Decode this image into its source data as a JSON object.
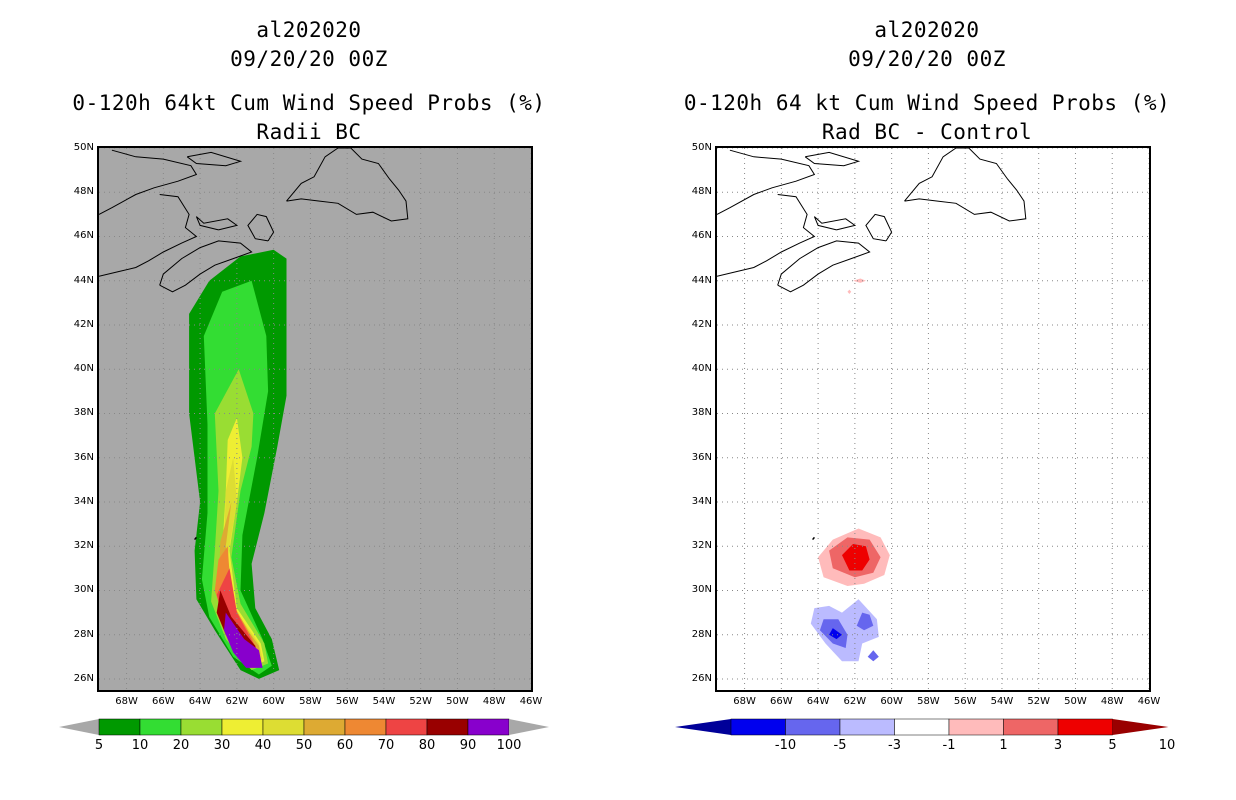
{
  "chart_data": [
    {
      "type": "heatmap",
      "storm_id": "al202020",
      "datetime": "09/20/20 00Z",
      "title": "0-120h 64kt Cum Wind Speed Probs (%)",
      "subtitle": "Radii BC",
      "x_ticks": [
        "68W",
        "66W",
        "64W",
        "62W",
        "60W",
        "58W",
        "56W",
        "54W",
        "52W",
        "50W",
        "48W",
        "46W"
      ],
      "y_ticks": [
        "26N",
        "28N",
        "30N",
        "32N",
        "34N",
        "36N",
        "38N",
        "40N",
        "42N",
        "44N",
        "46N",
        "48N",
        "50N"
      ],
      "xlim": [
        -69.5,
        -46
      ],
      "ylim": [
        25.5,
        50
      ],
      "colorbar": {
        "labels": [
          "5",
          "10",
          "20",
          "30",
          "40",
          "50",
          "60",
          "70",
          "80",
          "90",
          "100"
        ],
        "colors": [
          "#009900",
          "#33dd33",
          "#99dd33",
          "#eeee33",
          "#dddd33",
          "#ddaa33",
          "#ee8833",
          "#ee4444",
          "#990000",
          "#8800cc"
        ]
      },
      "contours": [
        {
          "level": 5,
          "polygon": [
            [
              -60,
              45.4
            ],
            [
              -59.3,
              45.0
            ],
            [
              -59.3,
              41
            ],
            [
              -59.3,
              38.8
            ],
            [
              -59.8,
              36.5
            ],
            [
              -60.5,
              33.5
            ],
            [
              -61.2,
              31.2
            ],
            [
              -61.0,
              29.2
            ],
            [
              -60.1,
              27.8
            ],
            [
              -59.7,
              26.4
            ],
            [
              -60.8,
              26.0
            ],
            [
              -61.8,
              26.4
            ],
            [
              -63.2,
              28.2
            ],
            [
              -64.2,
              29.6
            ],
            [
              -64.3,
              31.8
            ],
            [
              -64.0,
              34.0
            ],
            [
              -64.6,
              38.0
            ],
            [
              -64.6,
              42.5
            ],
            [
              -63.5,
              44.0
            ],
            [
              -61.8,
              45.1
            ]
          ]
        },
        {
          "level": 10,
          "polygon": [
            [
              -61.2,
              44.0
            ],
            [
              -60.4,
              41.5
            ],
            [
              -60.3,
              39.0
            ],
            [
              -60.9,
              36.0
            ],
            [
              -61.7,
              32.5
            ],
            [
              -61.8,
              30.0
            ],
            [
              -60.6,
              27.8
            ],
            [
              -60.1,
              26.6
            ],
            [
              -60.8,
              26.2
            ],
            [
              -62.2,
              27.0
            ],
            [
              -63.5,
              28.8
            ],
            [
              -63.9,
              30.5
            ],
            [
              -63.6,
              33.5
            ],
            [
              -63.6,
              37.5
            ],
            [
              -63.8,
              41.5
            ],
            [
              -62.8,
              43.5
            ]
          ]
        },
        {
          "level": 20,
          "polygon": [
            [
              -61.9,
              40.0
            ],
            [
              -61.1,
              38.0
            ],
            [
              -61.2,
              36.5
            ],
            [
              -61.8,
              34.5
            ],
            [
              -62.3,
              31.5
            ],
            [
              -61.8,
              29.4
            ],
            [
              -60.5,
              27.6
            ],
            [
              -60.3,
              26.7
            ],
            [
              -61.2,
              26.4
            ],
            [
              -62.6,
              27.8
            ],
            [
              -63.4,
              29.5
            ],
            [
              -63.2,
              31.8
            ],
            [
              -63.0,
              34.5
            ],
            [
              -63.2,
              38.0
            ]
          ]
        },
        {
          "level": 30,
          "polygon": [
            [
              -62.0,
              37.8
            ],
            [
              -61.7,
              36.0
            ],
            [
              -62.0,
              34.0
            ],
            [
              -62.4,
              31.8
            ],
            [
              -62.0,
              29.2
            ],
            [
              -60.7,
              27.6
            ],
            [
              -60.5,
              26.8
            ],
            [
              -61.2,
              26.5
            ],
            [
              -62.4,
              28.0
            ],
            [
              -63.0,
              29.6
            ],
            [
              -62.8,
              31.8
            ],
            [
              -62.6,
              34.5
            ],
            [
              -62.5,
              36.8
            ]
          ]
        },
        {
          "level": 40,
          "polygon": [
            [
              -62.2,
              36.0
            ],
            [
              -62.0,
              34.0
            ],
            [
              -62.5,
              31.5
            ],
            [
              -62.0,
              29.0
            ],
            [
              -60.8,
              27.6
            ],
            [
              -60.6,
              26.9
            ],
            [
              -61.3,
              26.6
            ],
            [
              -62.5,
              28.2
            ],
            [
              -62.9,
              29.8
            ],
            [
              -62.7,
              32.0
            ],
            [
              -62.6,
              34.5
            ]
          ]
        },
        {
          "level": 50,
          "polygon": [
            [
              -62.3,
              34.0
            ],
            [
              -62.6,
              32.0
            ],
            [
              -62.1,
              29.0
            ],
            [
              -60.8,
              27.5
            ],
            [
              -60.7,
              26.9
            ],
            [
              -61.4,
              26.7
            ],
            [
              -62.6,
              28.3
            ],
            [
              -63.0,
              29.8
            ],
            [
              -62.9,
              32.2
            ]
          ]
        },
        {
          "level": 60,
          "polygon": [
            [
              -62.5,
              32.0
            ],
            [
              -62.3,
              29.5
            ],
            [
              -61.2,
              27.9
            ],
            [
              -60.8,
              27.0
            ],
            [
              -61.4,
              26.8
            ],
            [
              -62.6,
              28.4
            ],
            [
              -63.2,
              30.0
            ],
            [
              -63.0,
              31.4
            ]
          ]
        },
        {
          "level": 70,
          "polygon": [
            [
              -62.4,
              31.0
            ],
            [
              -62.0,
              29.0
            ],
            [
              -60.9,
              27.3
            ],
            [
              -61.3,
              26.9
            ],
            [
              -62.6,
              28.4
            ],
            [
              -63.1,
              29.8
            ]
          ]
        },
        {
          "level": 80,
          "polygon": [
            [
              -62.9,
              30.0
            ],
            [
              -62.3,
              28.8
            ],
            [
              -61.0,
              27.5
            ],
            [
              -60.9,
              27.0
            ],
            [
              -61.6,
              26.9
            ],
            [
              -62.6,
              28.0
            ],
            [
              -63.1,
              29.0
            ]
          ]
        },
        {
          "level": 90,
          "polygon": [
            [
              -62.6,
              29.0
            ],
            [
              -61.6,
              27.8
            ],
            [
              -60.8,
              27.3
            ],
            [
              -60.6,
              26.5
            ],
            [
              -61.5,
              26.5
            ],
            [
              -62.2,
              27.2
            ],
            [
              -62.7,
              28.2
            ]
          ]
        }
      ]
    },
    {
      "type": "heatmap",
      "storm_id": "al202020",
      "datetime": "09/20/20 00Z",
      "title": "0-120h 64 kt Cum Wind Speed Probs (%)",
      "subtitle": "Rad BC - Control",
      "x_ticks": [
        "68W",
        "66W",
        "64W",
        "62W",
        "60W",
        "58W",
        "56W",
        "54W",
        "52W",
        "50W",
        "48W",
        "46W"
      ],
      "y_ticks": [
        "26N",
        "28N",
        "30N",
        "32N",
        "34N",
        "36N",
        "38N",
        "40N",
        "42N",
        "44N",
        "46N",
        "48N",
        "50N"
      ],
      "xlim": [
        -69.5,
        -46
      ],
      "ylim": [
        25.5,
        50
      ],
      "colorbar": {
        "labels": [
          "-10",
          "-5",
          "-3",
          "-1",
          "1",
          "3",
          "5",
          "10"
        ],
        "colors": [
          "#000099",
          "#0000ee",
          "#6666ee",
          "#bbbbff",
          "#ffffff",
          "#ffbbbb",
          "#ee6666",
          "#ee0000",
          "#990000"
        ]
      },
      "contours": [
        {
          "level": 1,
          "polygon": [
            [
              -60.1,
              31.6
            ],
            [
              -60.4,
              30.7
            ],
            [
              -61.5,
              30.3
            ],
            [
              -62.4,
              30.2
            ],
            [
              -63.7,
              30.6
            ],
            [
              -64.0,
              31.5
            ],
            [
              -63.2,
              32.3
            ],
            [
              -61.8,
              32.8
            ],
            [
              -60.6,
              32.4
            ]
          ]
        },
        {
          "level": 3,
          "polygon": [
            [
              -60.6,
              31.5
            ],
            [
              -61.0,
              30.8
            ],
            [
              -62.0,
              30.6
            ],
            [
              -63.2,
              31.0
            ],
            [
              -63.4,
              31.8
            ],
            [
              -62.4,
              32.4
            ],
            [
              -61.2,
              32.3
            ]
          ]
        },
        {
          "level": 5,
          "polygon": [
            [
              -61.2,
              31.4
            ],
            [
              -61.6,
              30.9
            ],
            [
              -62.3,
              30.9
            ],
            [
              -62.7,
              31.6
            ],
            [
              -62.1,
              32.1
            ],
            [
              -61.4,
              32.0
            ]
          ]
        },
        {
          "level": 1,
          "polygon": [
            [
              -61.4,
              44.0
            ],
            [
              -61.7,
              43.9
            ],
            [
              -62.1,
              44.0
            ],
            [
              -61.7,
              44.1
            ]
          ]
        },
        {
          "level": 1,
          "polygon": [
            [
              -62.2,
              43.5
            ],
            [
              -62.3,
              43.4
            ],
            [
              -62.4,
              43.5
            ],
            [
              -62.3,
              43.6
            ]
          ]
        },
        {
          "level": -1,
          "polygon": [
            [
              -64.2,
              29.2
            ],
            [
              -64.4,
              28.5
            ],
            [
              -63.6,
              27.6
            ],
            [
              -62.7,
              26.8
            ],
            [
              -61.8,
              26.8
            ],
            [
              -61.6,
              27.6
            ],
            [
              -60.7,
              27.9
            ],
            [
              -60.8,
              28.7
            ],
            [
              -61.8,
              29.6
            ],
            [
              -62.7,
              29.0
            ],
            [
              -63.4,
              29.3
            ]
          ]
        },
        {
          "level": -3,
          "polygon": [
            [
              -63.7,
              28.7
            ],
            [
              -63.9,
              28.2
            ],
            [
              -63.2,
              27.6
            ],
            [
              -62.5,
              27.4
            ],
            [
              -62.4,
              28.0
            ],
            [
              -62.9,
              28.7
            ]
          ]
        },
        {
          "level": -3,
          "polygon": [
            [
              -61.6,
              29.0
            ],
            [
              -61.9,
              28.4
            ],
            [
              -61.5,
              28.2
            ],
            [
              -61.0,
              28.4
            ],
            [
              -61.2,
              28.9
            ]
          ]
        },
        {
          "level": -3,
          "polygon": [
            [
              -61.3,
              27.0
            ],
            [
              -61.0,
              26.8
            ],
            [
              -60.7,
              27.0
            ],
            [
              -61.0,
              27.3
            ]
          ]
        },
        {
          "level": -5,
          "polygon": [
            [
              -63.2,
              28.3
            ],
            [
              -63.4,
              28.0
            ],
            [
              -63.0,
              27.8
            ],
            [
              -62.7,
              28.0
            ]
          ]
        }
      ]
    }
  ]
}
